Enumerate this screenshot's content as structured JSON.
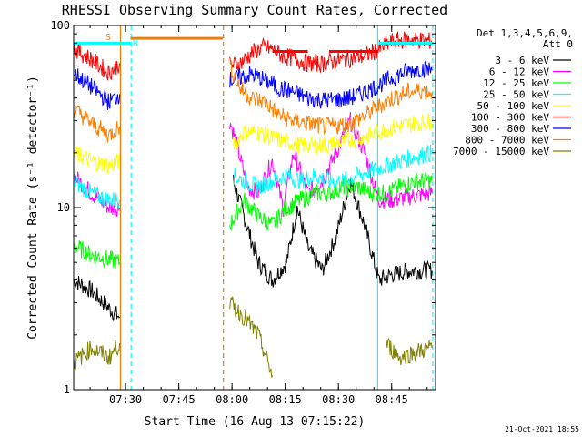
{
  "chart_data": {
    "type": "line",
    "title": "RHESSI Observing Summary Count Rates, Corrected",
    "xlabel": "Start Time (16-Aug-13 07:15:22)",
    "ylabel": "Corrected Count Rate (s⁻¹ detector⁻¹)",
    "y_scale": "log",
    "ylim": [
      1,
      100
    ],
    "xlim_minutes_after_0715": [
      0,
      102
    ],
    "x_ticks": [
      "07:30",
      "07:45",
      "08:00",
      "08:15",
      "08:30",
      "08:45"
    ],
    "y_ticks": [
      "1",
      "10",
      "100"
    ],
    "legend_header": [
      "Det 1,3,4,5,6,9,",
      "Att 0"
    ],
    "footer_date": "21-Oct-2021 18:55",
    "flag_labels": [
      {
        "text": "S",
        "color": "#f07d00"
      },
      {
        "text": "N",
        "color": "#00ffff"
      }
    ],
    "vertical_markers": [
      {
        "time_min": 13.2,
        "color": "#f07d00",
        "style": "solid"
      },
      {
        "time_min": 16.2,
        "color": "#00ffff",
        "style": "dashed"
      },
      {
        "time_min": 42.2,
        "color": "#f07d00",
        "style": "dashed"
      },
      {
        "time_min": 85.7,
        "color": "#00ffff",
        "style": "solid"
      },
      {
        "time_min": 101.2,
        "color": "#00ffff",
        "style": "dashed"
      }
    ],
    "series": [
      {
        "name": "3 - 6 keV",
        "color": "#000000",
        "points": [
          [
            0,
            4
          ],
          [
            5,
            3.5
          ],
          [
            10,
            2.8
          ],
          [
            13,
            2.5
          ],
          [
            43,
            null
          ],
          [
            45,
            14
          ],
          [
            48,
            9
          ],
          [
            52,
            5
          ],
          [
            56,
            4
          ],
          [
            60,
            5
          ],
          [
            63,
            10
          ],
          [
            66,
            6
          ],
          [
            70,
            4.5
          ],
          [
            74,
            7
          ],
          [
            78,
            14
          ],
          [
            82,
            8
          ],
          [
            86,
            4
          ],
          [
            90,
            4.3
          ],
          [
            95,
            4.5
          ],
          [
            101,
            4.5
          ]
        ]
      },
      {
        "name": "6 - 12 keV",
        "color": "#ff00ff",
        "points": [
          [
            0,
            15
          ],
          [
            5,
            12
          ],
          [
            10,
            10
          ],
          [
            13,
            10
          ],
          [
            43,
            null
          ],
          [
            44,
            30
          ],
          [
            46,
            22
          ],
          [
            49,
            13
          ],
          [
            52,
            12
          ],
          [
            56,
            18
          ],
          [
            59,
            10
          ],
          [
            62,
            20
          ],
          [
            66,
            12
          ],
          [
            70,
            14
          ],
          [
            74,
            20
          ],
          [
            78,
            30
          ],
          [
            82,
            20
          ],
          [
            86,
            11
          ],
          [
            90,
            11
          ],
          [
            95,
            11.5
          ],
          [
            101,
            12
          ]
        ]
      },
      {
        "name": "12 - 25 keV",
        "color": "#00ff00",
        "points": [
          [
            0,
            6.2
          ],
          [
            5,
            5.5
          ],
          [
            10,
            5.2
          ],
          [
            13,
            5
          ],
          [
            43,
            null
          ],
          [
            44,
            8
          ],
          [
            48,
            11
          ],
          [
            52,
            9
          ],
          [
            56,
            8
          ],
          [
            60,
            10
          ],
          [
            64,
            11
          ],
          [
            68,
            12
          ],
          [
            72,
            12
          ],
          [
            76,
            13
          ],
          [
            80,
            13
          ],
          [
            84,
            12
          ],
          [
            88,
            12
          ],
          [
            92,
            13
          ],
          [
            96,
            14
          ],
          [
            101,
            14
          ]
        ]
      },
      {
        "name": "25 - 50 keV",
        "color": "#00ffff",
        "points": [
          [
            0,
            14
          ],
          [
            5,
            12
          ],
          [
            10,
            11
          ],
          [
            13,
            11
          ],
          [
            43,
            null
          ],
          [
            45,
            15
          ],
          [
            48,
            14
          ],
          [
            52,
            13
          ],
          [
            56,
            14
          ],
          [
            60,
            15
          ],
          [
            64,
            14
          ],
          [
            68,
            15
          ],
          [
            72,
            14
          ],
          [
            76,
            14
          ],
          [
            80,
            15
          ],
          [
            84,
            16
          ],
          [
            88,
            17
          ],
          [
            92,
            18
          ],
          [
            96,
            19
          ],
          [
            101,
            20
          ]
        ]
      },
      {
        "name": "50 - 100 keV",
        "color": "#ffff00",
        "points": [
          [
            0,
            20
          ],
          [
            5,
            18
          ],
          [
            10,
            17
          ],
          [
            13,
            18
          ],
          [
            43,
            null
          ],
          [
            45,
            22
          ],
          [
            48,
            26
          ],
          [
            52,
            26
          ],
          [
            56,
            24
          ],
          [
            60,
            23
          ],
          [
            64,
            22
          ],
          [
            68,
            22
          ],
          [
            72,
            22
          ],
          [
            76,
            23
          ],
          [
            80,
            24
          ],
          [
            84,
            25
          ],
          [
            88,
            27
          ],
          [
            92,
            28
          ],
          [
            96,
            29
          ],
          [
            101,
            30
          ]
        ]
      },
      {
        "name": "100 - 300 keV",
        "color": "#ff0000",
        "points": [
          [
            0,
            75
          ],
          [
            5,
            65
          ],
          [
            10,
            55
          ],
          [
            13,
            62
          ],
          [
            43,
            null
          ],
          [
            44,
            60
          ],
          [
            47,
            62
          ],
          [
            50,
            70
          ],
          [
            53,
            76
          ],
          [
            56,
            74
          ],
          [
            59,
            68
          ],
          [
            62,
            66
          ],
          [
            66,
            62
          ],
          [
            70,
            62
          ],
          [
            74,
            64
          ],
          [
            78,
            66
          ],
          [
            82,
            68
          ],
          [
            86,
            74
          ],
          [
            90,
            82
          ],
          [
            95,
            84
          ],
          [
            101,
            82
          ]
        ]
      },
      {
        "name": "300 - 800 keV",
        "color": "#0000ff",
        "points": [
          [
            0,
            55
          ],
          [
            5,
            46
          ],
          [
            10,
            38
          ],
          [
            13,
            42
          ],
          [
            43,
            null
          ],
          [
            44,
            50
          ],
          [
            47,
            52
          ],
          [
            50,
            54
          ],
          [
            54,
            50
          ],
          [
            58,
            45
          ],
          [
            62,
            43
          ],
          [
            66,
            40
          ],
          [
            70,
            39
          ],
          [
            74,
            39
          ],
          [
            78,
            40
          ],
          [
            82,
            43
          ],
          [
            86,
            47
          ],
          [
            90,
            52
          ],
          [
            94,
            56
          ],
          [
            98,
            58
          ],
          [
            101,
            57
          ]
        ]
      },
      {
        "name": "800 - 7000 keV",
        "color": "#ff8000",
        "points": [
          [
            0,
            35
          ],
          [
            5,
            29
          ],
          [
            10,
            25
          ],
          [
            13,
            28
          ],
          [
            43,
            null
          ],
          [
            44,
            60
          ],
          [
            47,
            45
          ],
          [
            50,
            40
          ],
          [
            54,
            38
          ],
          [
            58,
            32
          ],
          [
            62,
            30
          ],
          [
            66,
            29
          ],
          [
            70,
            28
          ],
          [
            74,
            28
          ],
          [
            78,
            29
          ],
          [
            82,
            32
          ],
          [
            86,
            36
          ],
          [
            90,
            40
          ],
          [
            94,
            43
          ],
          [
            98,
            44
          ],
          [
            101,
            43
          ]
        ]
      },
      {
        "name": "7000 - 15000 keV",
        "color": "#808000",
        "points": [
          [
            0,
            1.4
          ],
          [
            5,
            1.7
          ],
          [
            10,
            1.5
          ],
          [
            13,
            1.8
          ],
          [
            43,
            null
          ],
          [
            44,
            3
          ],
          [
            48,
            2.5
          ],
          [
            52,
            2
          ],
          [
            56,
            1.2
          ],
          [
            86,
            null
          ],
          [
            88,
            1.8
          ],
          [
            92,
            1.5
          ],
          [
            96,
            1.6
          ],
          [
            101,
            1.7
          ]
        ]
      }
    ],
    "flat_segments": [
      {
        "color": "#00ffff",
        "y": 80,
        "t0": 0,
        "t1": 16
      },
      {
        "color": "#f07d00",
        "y": 85,
        "t0": 16,
        "t1": 42
      },
      {
        "color": "#ff0000",
        "y": 72,
        "t0": 56,
        "t1": 66
      },
      {
        "color": "#ff0000",
        "y": 72,
        "t0": 72,
        "t1": 86
      },
      {
        "color": "#ff0000",
        "y": 80,
        "t0": 88,
        "t1": 101
      },
      {
        "color": "#00ffff",
        "y": 80,
        "t0": 86,
        "t1": 101
      }
    ]
  }
}
